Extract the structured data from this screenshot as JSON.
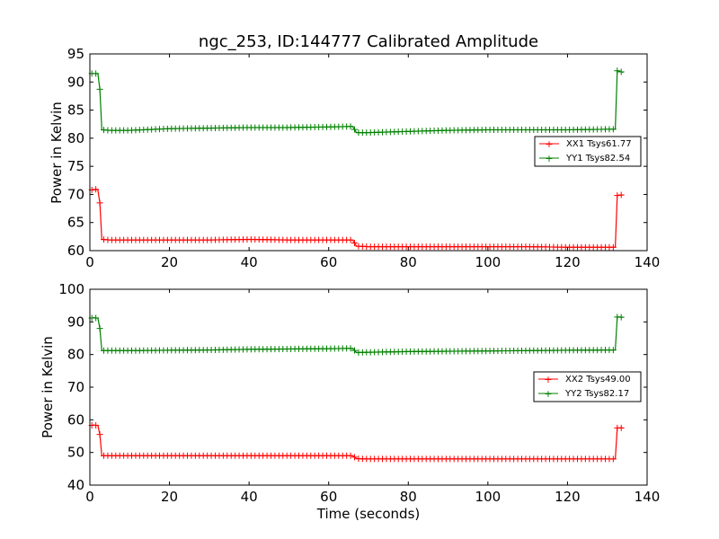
{
  "title": "ngc_253, ID:144777 Calibrated Amplitude",
  "colors": {
    "xx": "#ff0000",
    "yy": "#008000"
  },
  "chart_data": [
    {
      "type": "line",
      "xlabel": "",
      "ylabel": "Power in Kelvin",
      "xlim": [
        0,
        140
      ],
      "ylim": [
        60,
        95
      ],
      "xticks": [
        "0",
        "20",
        "40",
        "60",
        "80",
        "100",
        "120",
        "140"
      ],
      "yticks": [
        "60",
        "65",
        "70",
        "75",
        "80",
        "85",
        "90",
        "95"
      ],
      "grid": false,
      "legend_position": "right",
      "series": [
        {
          "name": "XX1 Tsys61.77",
          "color": "#ff0000",
          "points": [
            [
              0.5,
              70.8
            ],
            [
              1,
              70.8
            ],
            [
              1.5,
              70.9
            ],
            [
              2,
              70.8
            ],
            [
              2.5,
              68.5
            ],
            [
              3,
              62.0
            ],
            [
              5,
              61.9
            ],
            [
              10,
              61.9
            ],
            [
              20,
              61.9
            ],
            [
              30,
              61.9
            ],
            [
              40,
              62.0
            ],
            [
              50,
              61.9
            ],
            [
              60,
              61.9
            ],
            [
              66,
              61.9
            ],
            [
              67,
              60.8
            ],
            [
              70,
              60.7
            ],
            [
              80,
              60.7
            ],
            [
              90,
              60.7
            ],
            [
              100,
              60.7
            ],
            [
              110,
              60.7
            ],
            [
              120,
              60.6
            ],
            [
              131,
              60.6
            ],
            [
              132,
              60.6
            ],
            [
              132.5,
              69.8
            ],
            [
              133,
              69.9
            ],
            [
              134,
              69.9
            ]
          ]
        },
        {
          "name": "YY1 Tsys82.54",
          "color": "#008000",
          "points": [
            [
              0.5,
              91.5
            ],
            [
              1,
              91.5
            ],
            [
              1.5,
              91.5
            ],
            [
              2,
              91.5
            ],
            [
              2.5,
              88.7
            ],
            [
              3,
              81.5
            ],
            [
              5,
              81.4
            ],
            [
              10,
              81.4
            ],
            [
              20,
              81.7
            ],
            [
              30,
              81.8
            ],
            [
              40,
              81.9
            ],
            [
              50,
              81.9
            ],
            [
              60,
              82.0
            ],
            [
              66,
              82.1
            ],
            [
              67,
              81.0
            ],
            [
              70,
              81.0
            ],
            [
              80,
              81.2
            ],
            [
              90,
              81.4
            ],
            [
              100,
              81.5
            ],
            [
              110,
              81.5
            ],
            [
              120,
              81.5
            ],
            [
              131,
              81.6
            ],
            [
              132,
              81.6
            ],
            [
              132.5,
              92.0
            ],
            [
              133,
              91.9
            ],
            [
              134,
              91.7
            ]
          ]
        }
      ]
    },
    {
      "type": "line",
      "xlabel": "Time (seconds)",
      "ylabel": "Power in Kelvin",
      "xlim": [
        0,
        140
      ],
      "ylim": [
        40,
        100
      ],
      "xticks": [
        "0",
        "20",
        "40",
        "60",
        "80",
        "100",
        "120",
        "140"
      ],
      "yticks": [
        "40",
        "50",
        "60",
        "70",
        "80",
        "90",
        "100"
      ],
      "grid": false,
      "legend_position": "right",
      "series": [
        {
          "name": "XX2 Tsys49.00",
          "color": "#ff0000",
          "points": [
            [
              0.5,
              58.3
            ],
            [
              1,
              58.4
            ],
            [
              1.5,
              58.3
            ],
            [
              2,
              58.3
            ],
            [
              2.5,
              55.5
            ],
            [
              3,
              49.0
            ],
            [
              5,
              49.0
            ],
            [
              10,
              49.0
            ],
            [
              20,
              49.0
            ],
            [
              30,
              49.0
            ],
            [
              40,
              49.0
            ],
            [
              50,
              49.0
            ],
            [
              60,
              49.0
            ],
            [
              66,
              49.0
            ],
            [
              67,
              48.1
            ],
            [
              70,
              48.0
            ],
            [
              80,
              48.0
            ],
            [
              90,
              48.0
            ],
            [
              100,
              48.0
            ],
            [
              110,
              48.0
            ],
            [
              120,
              48.0
            ],
            [
              131,
              48.0
            ],
            [
              132,
              48.0
            ],
            [
              132.5,
              57.5
            ],
            [
              133,
              57.5
            ],
            [
              134,
              57.5
            ]
          ]
        },
        {
          "name": "YY2 Tsys82.17",
          "color": "#008000",
          "points": [
            [
              0.5,
              91.2
            ],
            [
              1,
              91.3
            ],
            [
              1.5,
              91.2
            ],
            [
              2,
              91.2
            ],
            [
              2.5,
              88.0
            ],
            [
              3,
              81.2
            ],
            [
              5,
              81.2
            ],
            [
              10,
              81.2
            ],
            [
              20,
              81.3
            ],
            [
              30,
              81.4
            ],
            [
              40,
              81.6
            ],
            [
              50,
              81.7
            ],
            [
              60,
              81.8
            ],
            [
              66,
              81.9
            ],
            [
              67,
              80.6
            ],
            [
              70,
              80.7
            ],
            [
              80,
              80.9
            ],
            [
              90,
              81.0
            ],
            [
              100,
              81.1
            ],
            [
              110,
              81.2
            ],
            [
              120,
              81.3
            ],
            [
              131,
              81.4
            ],
            [
              132,
              81.4
            ],
            [
              132.5,
              91.5
            ],
            [
              133,
              91.5
            ],
            [
              134,
              91.4
            ]
          ]
        }
      ]
    }
  ]
}
